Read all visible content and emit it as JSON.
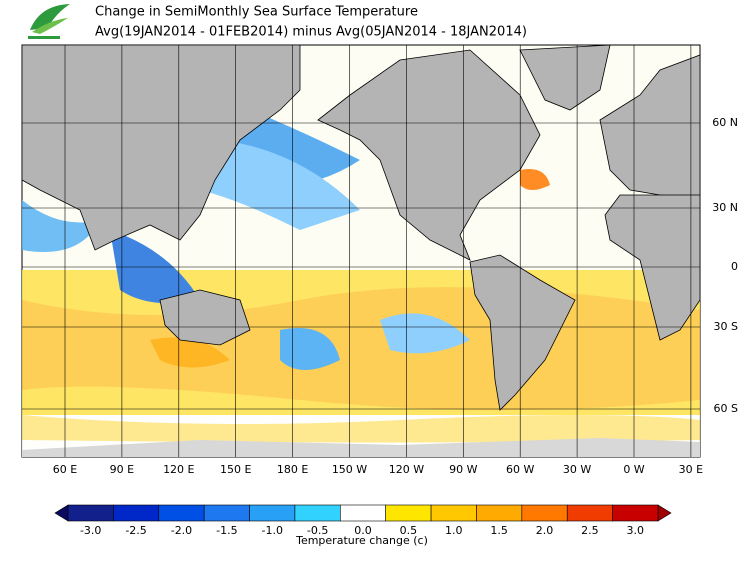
{
  "header": {
    "title": "Change in SemiMonthly Sea Surface Temperature",
    "subtitle": "Avg(19JAN2014 - 01FEB2014) minus Avg(05JAN2014 - 18JAN2014)"
  },
  "map": {
    "lon_labels": [
      "60 E",
      "90 E",
      "120 E",
      "150 E",
      "180 E",
      "150 W",
      "120 W",
      "90 W",
      "60 W",
      "30 W",
      "0 W",
      "30 E"
    ],
    "lat_labels": [
      "60 N",
      "30 N",
      "0",
      "30 S",
      "60 S"
    ]
  },
  "colorbar": {
    "ticks": [
      "-3.0",
      "-2.5",
      "-2.0",
      "-1.5",
      "-1.0",
      "-0.5",
      "0.0",
      "0.5",
      "1.0",
      "1.5",
      "2.0",
      "2.5",
      "3.0"
    ],
    "colors": [
      "#12208c",
      "#0028c8",
      "#0050e6",
      "#1e78f0",
      "#28a0f5",
      "#32d2ff",
      "#ffffff",
      "#ffe600",
      "#ffc800",
      "#ffaa00",
      "#ff7800",
      "#f03c00",
      "#c80000"
    ],
    "low_color": "#0a0a60",
    "high_color": "#a00000",
    "label": "Temperature change  (c)"
  }
}
